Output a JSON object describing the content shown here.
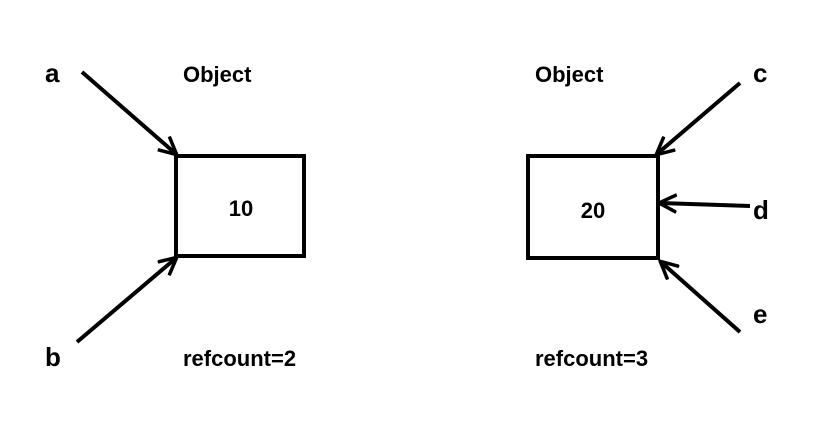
{
  "colors": {
    "stroke": "#000000",
    "background": "#ffffff"
  },
  "objects": [
    {
      "label": "Object",
      "value": "10",
      "refcount": "refcount=2",
      "references": [
        "a",
        "b"
      ]
    },
    {
      "label": "Object",
      "value": "20",
      "refcount": "refcount=3",
      "references": [
        "c",
        "d",
        "e"
      ]
    }
  ]
}
